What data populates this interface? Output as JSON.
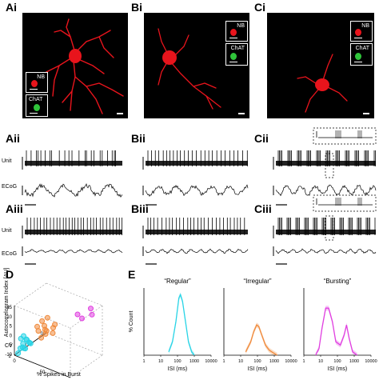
{
  "panels": {
    "Ai": "Ai",
    "Bi": "Bi",
    "Ci": "Ci",
    "Aii": "Aii",
    "Bii": "Bii",
    "Cii": "Cii",
    "Aiii": "Aiii",
    "Biii": "Biii",
    "Ciii": "Ciii",
    "D": "D",
    "E": "E"
  },
  "inset_labels": {
    "nb": "NB",
    "chat": "ChAT"
  },
  "trace_labels": {
    "unit": "Unit",
    "ecog": "ECoG"
  },
  "colors": {
    "nb": "#e8141c",
    "chat": "#2fc43a",
    "regular": "#29d4e6",
    "irregular": "#f08a3c",
    "bursting": "#e040e0"
  },
  "panel_d": {
    "zlabel": "Autocorrelogram Index [AU]",
    "ylabel": "CV",
    "xlabel": "% Spikes in Burst",
    "z_ticks": [
      "15",
      "10",
      "5",
      "0",
      "-5",
      "-10"
    ],
    "cv_ticks": [
      "2",
      "1",
      "0"
    ],
    "x_ticks": [
      "0",
      "50",
      "100"
    ]
  },
  "panel_e": {
    "ylabel": "% Count",
    "xlabel": "ISI (ms)",
    "x_ticks": [
      "1",
      "10",
      "100",
      "1000",
      "10000"
    ],
    "titles": [
      "“Regular”",
      "“Irregular”",
      "“Bursting”"
    ]
  },
  "chart_data": [
    {
      "type": "line",
      "title": "“Regular”",
      "xlabel": "ISI (ms)",
      "ylabel": "% Count",
      "x_scale": "log",
      "xlim": [
        1,
        10000
      ],
      "series": [
        {
          "x": [
            30,
            50,
            80,
            120,
            150,
            200,
            300,
            450,
            700,
            1000
          ],
          "values": [
            1,
            4,
            10,
            17,
            18,
            16,
            10,
            4,
            1,
            0
          ]
        }
      ]
    },
    {
      "type": "line",
      "title": "“Irregular”",
      "xlabel": "ISI (ms)",
      "ylabel": "% Count",
      "x_scale": "log",
      "xlim": [
        1,
        10000
      ],
      "series": [
        {
          "x": [
            20,
            40,
            60,
            90,
            120,
            180,
            300,
            500,
            800,
            1500
          ],
          "values": [
            1,
            4,
            7,
            9,
            8.5,
            6,
            3,
            1.5,
            0.8,
            0
          ]
        }
      ]
    },
    {
      "type": "line",
      "title": "“Bursting”",
      "xlabel": "ISI (ms)",
      "ylabel": "% Count",
      "x_scale": "log",
      "xlim": [
        1,
        10000
      ],
      "series": [
        {
          "x": [
            5,
            8,
            12,
            20,
            30,
            50,
            80,
            150,
            250,
            350,
            500,
            800,
            1500
          ],
          "values": [
            0,
            2,
            8,
            14,
            14,
            10,
            4,
            3,
            6,
            9,
            5,
            1,
            0
          ]
        }
      ]
    },
    {
      "type": "scatter",
      "xlabel": "% Spikes in Burst",
      "ylabel": "CV",
      "zlabel": "Autocorrelogram Index [AU]",
      "xlim": [
        0,
        100
      ],
      "ylim": [
        0,
        2
      ],
      "zlim": [
        -10,
        15
      ],
      "series": [
        {
          "name": "Regular",
          "points": [
            [
              2,
              0.3,
              -8
            ],
            [
              4,
              0.4,
              -6
            ],
            [
              3,
              0.5,
              -9
            ],
            [
              6,
              0.3,
              -7
            ],
            [
              5,
              0.6,
              -5
            ],
            [
              8,
              0.4,
              -8
            ],
            [
              1,
              0.2,
              -10
            ],
            [
              7,
              0.5,
              -4
            ],
            [
              10,
              0.6,
              -6
            ],
            [
              3,
              0.3,
              -3
            ],
            [
              9,
              0.7,
              -7
            ],
            [
              12,
              0.5,
              -5
            ],
            [
              5,
              0.4,
              -2
            ]
          ]
        },
        {
          "name": "Irregular",
          "points": [
            [
              20,
              0.8,
              0
            ],
            [
              25,
              1.0,
              2
            ],
            [
              30,
              0.9,
              -1
            ],
            [
              18,
              1.1,
              3
            ],
            [
              35,
              1.2,
              1
            ],
            [
              28,
              0.7,
              -2
            ],
            [
              40,
              1.0,
              0
            ],
            [
              22,
              1.3,
              4
            ],
            [
              32,
              0.8,
              2
            ],
            [
              26,
              1.1,
              -1
            ],
            [
              38,
              1.2,
              3
            ],
            [
              15,
              0.9,
              1
            ]
          ]
        },
        {
          "name": "Bursting",
          "points": [
            [
              70,
              1.5,
              10
            ],
            [
              85,
              1.8,
              13
            ],
            [
              75,
              1.6,
              8
            ],
            [
              90,
              1.7,
              11
            ]
          ]
        }
      ]
    }
  ]
}
